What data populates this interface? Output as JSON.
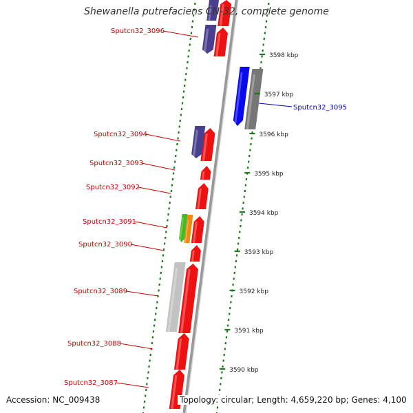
{
  "title": "Shewanella putrefaciens CN-32, complete genome",
  "accession": "Accession: NC_009438",
  "topology": "Topology: circular; Length: 4,659,220 bp; Genes: 4,100",
  "colors": {
    "forward_gene": "#ee1111",
    "reverse_gene_dark": "#4a3f8f",
    "reverse_gene_blue": "#0a0aee",
    "grey_gene": "#777777",
    "light_grey_gene": "#c2c2c2",
    "green_gene": "#44bb22",
    "orange_gene": "#f08a10",
    "tick": "#1a7a1a",
    "backbone": "#999999",
    "label_red": "#cc0000",
    "label_blue": "#0000bb"
  },
  "ticks": [
    {
      "label": "3598 kbp"
    },
    {
      "label": "3597 kbp"
    },
    {
      "label": "3596 kbp"
    },
    {
      "label": "3595 kbp"
    },
    {
      "label": "3594 kbp"
    },
    {
      "label": "3593 kbp"
    },
    {
      "label": "3592 kbp"
    },
    {
      "label": "3591 kbp"
    },
    {
      "label": "3590 kbp"
    }
  ],
  "gene_labels": [
    {
      "text": "Sputcn32_3096",
      "color": "label_red"
    },
    {
      "text": "Sputcn32_3095",
      "color": "label_blue"
    },
    {
      "text": "Sputcn32_3094",
      "color": "label_red"
    },
    {
      "text": "Sputcn32_3093",
      "color": "label_red"
    },
    {
      "text": "Sputcn32_3092",
      "color": "label_red"
    },
    {
      "text": "Sputcn32_3091",
      "color": "label_red"
    },
    {
      "text": "Sputcn32_3090",
      "color": "label_red"
    },
    {
      "text": "Sputcn32_3089",
      "color": "label_red"
    },
    {
      "text": "Sputcn32_3088",
      "color": "label_red"
    },
    {
      "text": "Sputcn32_3087",
      "color": "label_red"
    }
  ]
}
